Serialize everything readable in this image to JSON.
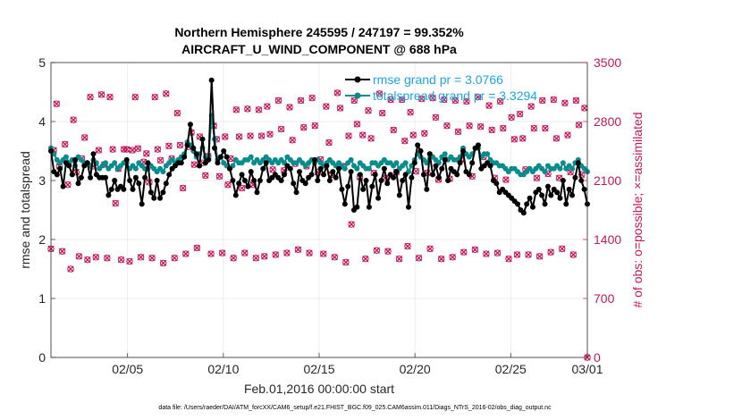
{
  "chart_data": {
    "type": "line",
    "title_line1": "Northern Hemisphere 245595 / 247197 = 99.352%",
    "title_line2": "AIRCRAFT_U_WIND_COMPONENT @ 688 hPa",
    "xlabel": "Feb.01,2016 00:00:00 start",
    "ylabel_left": "rmse and totalspread",
    "ylabel_right": "# of obs: o=possible; ×=assimilated",
    "footer": "data file: /Users/raeder/DAI/ATM_forcXX/CAM6_setup/f.e21.FHIST_BGC.f09_025.CAM6assim.011/Diags_NTrS_2016-02/obs_diag_output.nc",
    "x_range": [
      1,
      29
    ],
    "x_ticks": [
      5,
      10,
      15,
      20,
      25,
      29
    ],
    "x_tick_labels": [
      "02/05",
      "02/10",
      "02/15",
      "02/20",
      "02/25",
      "03/01"
    ],
    "ylim_left": [
      0,
      5
    ],
    "y_ticks_left": [
      "0",
      "1",
      "2",
      "3",
      "4",
      "5"
    ],
    "ylim_right": [
      0,
      3500
    ],
    "y_ticks_right": [
      "0",
      "700",
      "1400",
      "2100",
      "2800",
      "3500"
    ],
    "grid": true,
    "legend_position": "top-right",
    "series": [
      {
        "name": "rmse",
        "legend": "rmse grand pr = 3.0766",
        "color": "#000000",
        "axis": "left",
        "values": [
          3.5,
          3.15,
          3.1,
          3.2,
          2.9,
          3.3,
          3.25,
          3.1,
          3.35,
          2.95,
          3.05,
          3.25,
          3.3,
          3.05,
          3.45,
          3.1,
          3.05,
          3.05,
          3.05,
          2.75,
          2.85,
          3.0,
          2.85,
          2.9,
          2.85,
          3.35,
          3.0,
          2.85,
          3.05,
          2.95,
          2.6,
          3.05,
          3.3,
          2.8,
          2.7,
          3.0,
          2.7,
          2.8,
          2.95,
          3.1,
          3.2,
          3.25,
          3.3,
          3.3,
          3.4,
          3.6,
          3.95,
          3.55,
          3.45,
          3.25,
          3.7,
          3.3,
          3.35,
          4.7,
          3.55,
          3.3,
          3.4,
          3.5,
          3.4,
          3.2,
          3.0,
          2.75,
          2.95,
          3.1,
          3.0,
          2.9,
          3.15,
          3.0,
          2.8,
          3.0,
          3.2,
          3.3,
          3.0,
          3.05,
          3.1,
          3.05,
          3.0,
          3.1,
          3.25,
          3.2,
          2.95,
          2.8,
          3.15,
          3.0,
          2.95,
          3.05,
          3.1,
          3.35,
          3.0,
          3.2,
          3.1,
          3.25,
          3.0,
          3.15,
          3.05,
          3.2,
          2.85,
          2.6,
          2.9,
          3.15,
          2.5,
          2.55,
          3.1,
          2.85,
          3.0,
          2.55,
          2.9,
          3.1,
          2.7,
          3.0,
          3.2,
          2.95,
          3.1,
          3.05,
          3.15,
          2.75,
          3.0,
          3.1,
          2.55,
          3.05,
          3.3,
          3.6,
          3.5,
          3.1,
          2.85,
          3.45,
          3.1,
          3.25,
          3.05,
          3.2,
          3.35,
          3.0,
          3.2,
          3.15,
          3.1,
          3.3,
          3.5,
          3.15,
          3.1,
          3.3,
          3.55,
          3.6,
          3.2,
          3.25,
          3.3,
          3.25,
          3.0,
          2.95,
          2.8,
          2.85,
          2.8,
          2.75,
          2.7,
          2.65,
          2.6,
          2.5,
          2.45,
          2.6,
          2.7,
          2.55,
          2.8,
          2.85,
          2.75,
          2.6,
          2.9,
          2.75,
          2.85,
          2.8,
          2.7,
          3.0,
          2.6,
          2.85,
          2.75,
          3.05,
          3.3,
          3.0,
          2.85,
          2.6
        ]
      },
      {
        "name": "totalspread",
        "legend": "totalspread grand pr = 3.3294",
        "color": "#0a8c8c",
        "axis": "left",
        "values": [
          3.55,
          3.45,
          3.35,
          3.3,
          3.35,
          3.4,
          3.3,
          3.35,
          3.25,
          3.4,
          3.35,
          3.3,
          3.3,
          3.25,
          3.35,
          3.3,
          3.2,
          3.25,
          3.3,
          3.2,
          3.25,
          3.3,
          3.2,
          3.25,
          3.3,
          3.3,
          3.2,
          3.25,
          3.2,
          3.3,
          3.25,
          3.2,
          3.2,
          3.25,
          3.2,
          3.15,
          3.2,
          3.15,
          3.25,
          3.3,
          3.35,
          3.3,
          3.35,
          3.4,
          3.45,
          3.65,
          3.6,
          3.5,
          3.4,
          3.45,
          3.55,
          3.4,
          3.4,
          4.1,
          3.7,
          3.35,
          3.4,
          3.3,
          3.25,
          3.2,
          3.25,
          3.35,
          3.3,
          3.3,
          3.35,
          3.35,
          3.4,
          3.3,
          3.35,
          3.3,
          3.35,
          3.4,
          3.35,
          3.3,
          3.35,
          3.3,
          3.35,
          3.3,
          3.4,
          3.35,
          3.3,
          3.3,
          3.35,
          3.3,
          3.25,
          3.3,
          3.35,
          3.3,
          3.35,
          3.3,
          3.25,
          3.3,
          3.35,
          3.3,
          3.25,
          3.3,
          3.25,
          3.2,
          3.3,
          3.35,
          3.25,
          3.2,
          3.3,
          3.25,
          3.2,
          3.2,
          3.3,
          3.3,
          3.25,
          3.3,
          3.35,
          3.3,
          3.3,
          3.25,
          3.3,
          3.2,
          3.25,
          3.3,
          3.15,
          3.25,
          3.35,
          3.45,
          3.4,
          3.35,
          3.3,
          3.45,
          3.4,
          3.35,
          3.3,
          3.4,
          3.45,
          3.35,
          3.4,
          3.35,
          3.35,
          3.4,
          3.55,
          3.45,
          3.4,
          3.45,
          3.55,
          3.55,
          3.4,
          3.45,
          3.45,
          3.35,
          3.3,
          3.3,
          3.25,
          3.25,
          3.2,
          3.15,
          3.2,
          3.2,
          3.15,
          3.1,
          3.1,
          3.15,
          3.2,
          3.15,
          3.2,
          3.25,
          3.2,
          3.15,
          3.25,
          3.2,
          3.2,
          3.25,
          3.2,
          3.3,
          3.2,
          3.25,
          3.2,
          3.3,
          3.35,
          3.25,
          3.2,
          3.15
        ]
      },
      {
        "name": "obs_possible",
        "color": "#c2185b",
        "axis": "right",
        "marker": "o",
        "values": [
          1290,
          2460,
          3010,
          2270,
          1260,
          2530,
          2050,
          1050,
          2820,
          2200,
          1200,
          2360,
          2610,
          1160,
          3090,
          2270,
          1190,
          2460,
          3120,
          2290,
          1180,
          3090,
          2470,
          1830,
          2240,
          1160,
          2470,
          2470,
          1140,
          2460,
          3090,
          2480,
          1190,
          2320,
          2420,
          2080,
          1180,
          3090,
          2470,
          2340,
          1120,
          3130,
          2510,
          2360,
          1180,
          2900,
          2520,
          2010,
          1230,
          2500,
          2670,
          2290,
          1300,
          2620,
          2310,
          2160,
          2390,
          1230,
          2750,
          2590,
          2150,
          1240,
          2620,
          2050,
          2360,
          1180,
          2940,
          2620,
          2010,
          1240,
          2950,
          2630,
          2050,
          1180,
          2940,
          2630,
          1200,
          2980,
          2650,
          2230,
          1220,
          3050,
          2710,
          2220,
          1240,
          2970,
          2580,
          2300,
          1280,
          3050,
          2730,
          2270,
          1240,
          3080,
          2750,
          2200,
          2350,
          1230,
          2980,
          2550,
          2170,
          1190,
          3140,
          2960,
          2270,
          1130,
          2630,
          1580,
          3050,
          2770,
          2140,
          2640,
          1170,
          2930,
          2600,
          2190,
          1270,
          3130,
          2900,
          2130,
          1260,
          3060,
          2700,
          2200,
          1170,
          3060,
          2570,
          1320,
          2910,
          2640,
          2210,
          1180,
          3070,
          2660,
          2190,
          1290,
          3080,
          2850,
          2110,
          1170,
          3060,
          2750,
          2120,
          1190,
          3050,
          2680,
          2350,
          1250,
          3040,
          2750,
          2150,
          1280,
          3090,
          2740,
          2380,
          1230,
          2990,
          2700,
          2130,
          1240,
          3040,
          2720,
          2110,
          1170,
          2850,
          2590,
          1220,
          2890,
          2600,
          2230,
          1220,
          2980,
          2720,
          2130,
          1200,
          3050,
          2720,
          2180,
          1250,
          3060,
          2600,
          2130,
          1290,
          3020,
          2640,
          2200,
          1220,
          3050,
          2760,
          2170,
          2960,
          0
        ]
      },
      {
        "name": "obs_assimilated",
        "color": "#c2185b",
        "axis": "right",
        "marker": "x",
        "values": [
          1290,
          2460,
          3010,
          2270,
          1260,
          2530,
          2050,
          1050,
          2820,
          2200,
          1200,
          2360,
          2610,
          1160,
          3090,
          2270,
          1190,
          2460,
          3120,
          2290,
          1180,
          3090,
          2470,
          1830,
          2240,
          1160,
          2470,
          2470,
          1140,
          2460,
          3090,
          2480,
          1190,
          2320,
          2420,
          2080,
          1180,
          3090,
          2470,
          2340,
          1120,
          3130,
          2510,
          2360,
          1180,
          2900,
          2520,
          2010,
          1230,
          2500,
          2670,
          2290,
          1300,
          2620,
          2310,
          2160,
          2390,
          1230,
          2750,
          2590,
          2150,
          1240,
          2620,
          2050,
          2360,
          1180,
          2940,
          2620,
          2010,
          1240,
          2950,
          2630,
          2050,
          1180,
          2940,
          2630,
          1200,
          2980,
          2650,
          2230,
          1220,
          3050,
          2710,
          2220,
          1240,
          2970,
          2580,
          2300,
          1280,
          3050,
          2730,
          2270,
          1240,
          3080,
          2750,
          2200,
          2350,
          1230,
          2980,
          2550,
          2170,
          1190,
          3140,
          2960,
          2270,
          1130,
          2630,
          1580,
          3050,
          2770,
          2140,
          2640,
          1170,
          2930,
          2600,
          2190,
          1270,
          3130,
          2900,
          2130,
          1260,
          3060,
          2700,
          2200,
          1170,
          3060,
          2570,
          1320,
          2910,
          2640,
          2210,
          1180,
          3070,
          2660,
          2190,
          1290,
          3080,
          2850,
          2110,
          1170,
          3060,
          2750,
          2120,
          1190,
          3050,
          2680,
          2350,
          1250,
          3040,
          2750,
          2150,
          1280,
          3090,
          2740,
          2380,
          1230,
          2990,
          2700,
          2130,
          1240,
          3040,
          2720,
          2110,
          1170,
          2850,
          2590,
          1220,
          2890,
          2600,
          2230,
          1220,
          2980,
          2720,
          2130,
          1200,
          3050,
          2720,
          2180,
          1250,
          3060,
          2600,
          2130,
          1290,
          3020,
          2640,
          2200,
          1220,
          3050,
          2760,
          2170,
          2960,
          0
        ]
      }
    ]
  }
}
